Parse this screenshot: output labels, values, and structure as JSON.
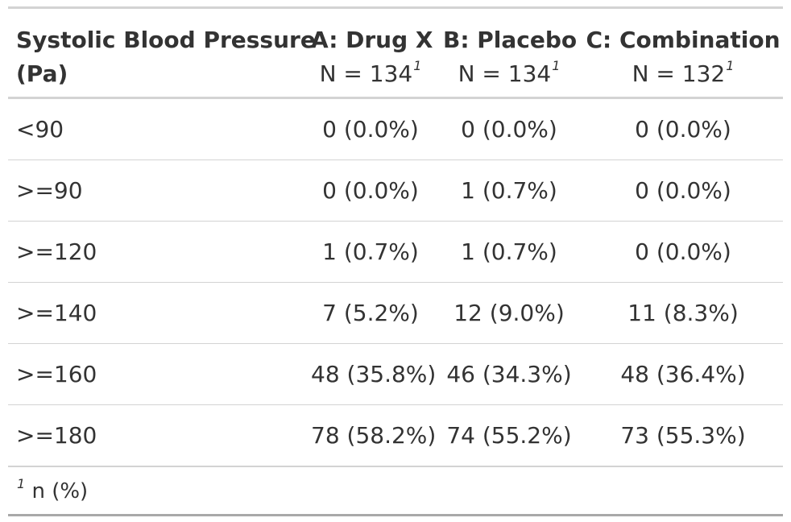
{
  "table": {
    "stub_header_line1": "Systolic Blood Pressure",
    "stub_header_line2": "(Pa)",
    "columns": [
      {
        "title": "A: Drug X",
        "n": "N = 134",
        "footnote_mark": "1"
      },
      {
        "title": "B: Placebo",
        "n": "N = 134",
        "footnote_mark": "1"
      },
      {
        "title": "C: Combination",
        "n": "N = 132",
        "footnote_mark": "1"
      }
    ],
    "rows": [
      {
        "label": "<90",
        "values": [
          "0 (0.0%)",
          "0 (0.0%)",
          "0 (0.0%)"
        ]
      },
      {
        "label": ">=90",
        "values": [
          "0 (0.0%)",
          "1 (0.7%)",
          "0 (0.0%)"
        ]
      },
      {
        "label": ">=120",
        "values": [
          "1 (0.7%)",
          "1 (0.7%)",
          "0 (0.0%)"
        ]
      },
      {
        "label": ">=140",
        "values": [
          "7 (5.2%)",
          "12 (9.0%)",
          "11 (8.3%)"
        ]
      },
      {
        "label": ">=160",
        "values": [
          "48 (35.8%)",
          "46 (34.3%)",
          "48 (36.4%)"
        ]
      },
      {
        "label": ">=180",
        "values": [
          "78 (58.2%)",
          "74 (55.2%)",
          "73 (55.3%)"
        ]
      }
    ],
    "footnote": {
      "mark": "1",
      "text": "n (%)"
    }
  }
}
